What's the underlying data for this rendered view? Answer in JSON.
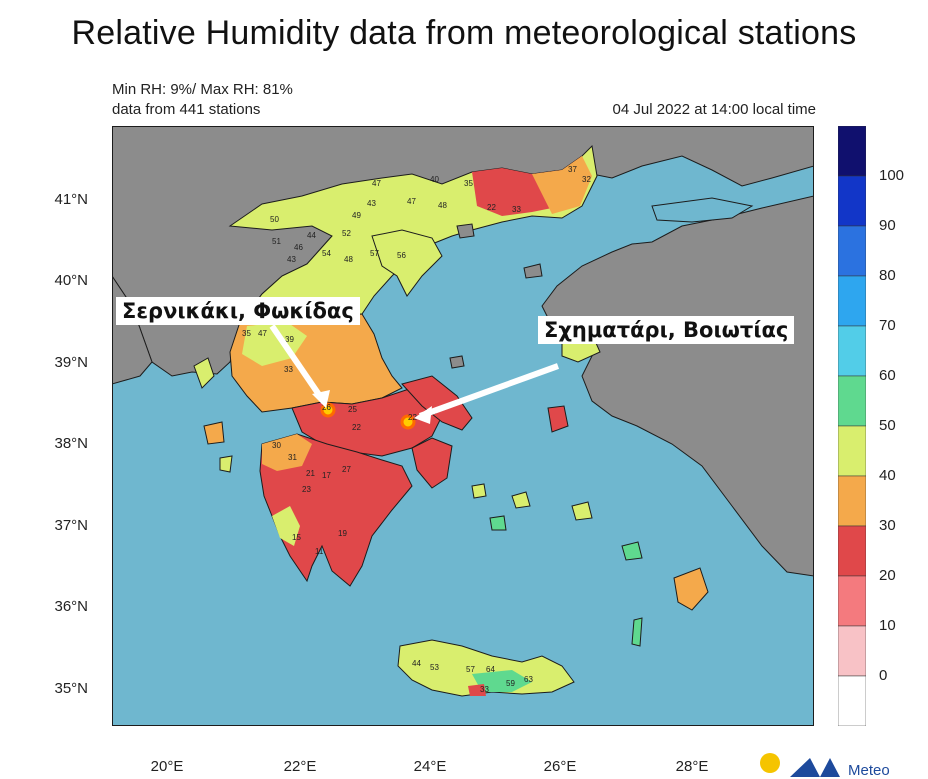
{
  "title": "Relative Humidity data from meteorological stations",
  "minmax": "Min RH: 9%/ Max RH: 81%",
  "stations": "data from 441 stations",
  "datetime": "04 Jul 2022 at 14:00 local time",
  "lat_labels": [
    "41°N",
    "40°N",
    "39°N",
    "38°N",
    "37°N",
    "36°N",
    "35°N"
  ],
  "lon_labels": [
    "20°E",
    "22°E",
    "24°E",
    "26°E",
    "28°E"
  ],
  "colorbar": {
    "labels": [
      "100",
      "90",
      "80",
      "70",
      "60",
      "50",
      "40",
      "30",
      "20",
      "10",
      "0"
    ],
    "colors": [
      "#10106e",
      "#1236c8",
      "#2b72e0",
      "#2ea6ef",
      "#52cde8",
      "#5fd98f",
      "#d9ee6e",
      "#f4a94b",
      "#e0484a",
      "#f47a7e",
      "#f8c2c6",
      "#ffffff"
    ]
  },
  "callouts": {
    "left": "Σερνικάκι, Φωκίδας",
    "right": "Σχηματάρι, Βοιωτίας"
  },
  "logo_text": "Meteo",
  "map_colors": {
    "sea": "#6fb7cf",
    "foreign_land": "#8c8c8c",
    "border": "#1c1c1c"
  },
  "station_values": [
    "47",
    "49",
    "43",
    "47",
    "40",
    "35",
    "48",
    "52",
    "22",
    "33",
    "37",
    "32",
    "50",
    "51",
    "44",
    "46",
    "43",
    "54",
    "48",
    "56",
    "57",
    "35",
    "47",
    "39",
    "33",
    "26",
    "25",
    "22",
    "30",
    "31",
    "27",
    "21",
    "17",
    "23",
    "19",
    "15",
    "11",
    "44",
    "53",
    "57",
    "64",
    "63",
    "33",
    "59",
    "22",
    "28"
  ]
}
